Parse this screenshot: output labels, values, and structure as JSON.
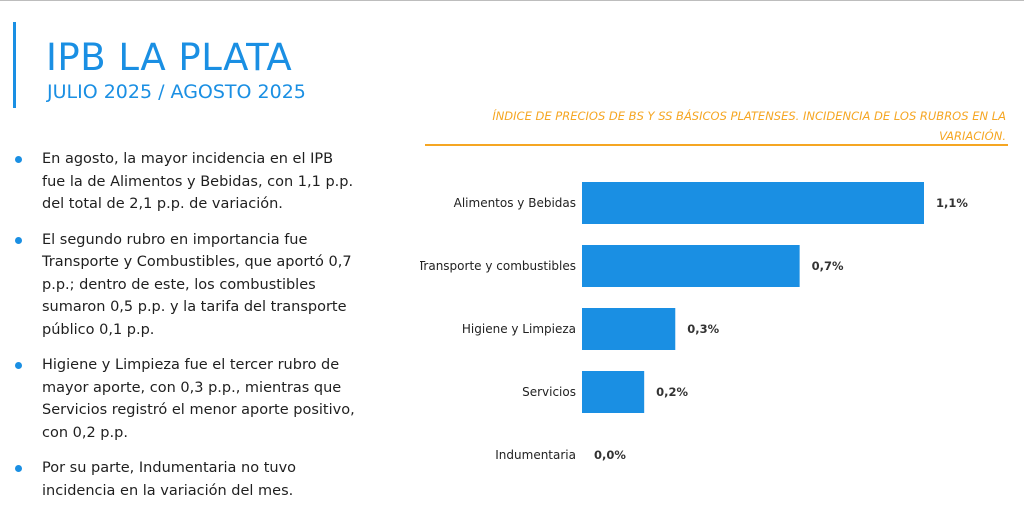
{
  "header": {
    "title": "IPB LA PLATA",
    "subtitle": "JULIO 2025 / AGOSTO 2025"
  },
  "bullets": [
    "En agosto, la mayor incidencia en el IPB fue la de Alimentos y Bebidas, con 1,1 p.p. del total de 2,1 p.p. de variación.",
    "El segundo rubro en importancia fue Transporte y Combustibles, que aportó 0,7 p.p.; dentro de este, los combustibles sumaron 0,5 p.p. y la tarifa del transporte público 0,1 p.p.",
    "Higiene y Limpieza fue el tercer rubro de mayor aporte, con 0,3 p.p., mientras que Servicios registró el menor aporte positivo, con 0,2 p.p.",
    "Por su parte, Indumentaria no tuvo incidencia en la variación del mes."
  ],
  "colors": {
    "accent": "#1a8fe3",
    "chart_title": "#f5a623",
    "bar": "#1a8fe3"
  },
  "chart_data": {
    "type": "bar",
    "orientation": "horizontal",
    "title": "ÍNDICE DE PRECIOS DE BS Y SS BÁSICOS PLATENSES. INCIDENCIA DE LOS RUBROS EN LA VARIACIÓN.",
    "categories": [
      "Alimentos y Bebidas",
      "Transporte y combustibles",
      "Higiene y Limpieza",
      "Servicios",
      "Indumentaria"
    ],
    "values": [
      1.1,
      0.7,
      0.3,
      0.2,
      0.0
    ],
    "value_labels": [
      "1,1%",
      "0,7%",
      "0,3%",
      "0,2%",
      "0,0%"
    ],
    "xlim": [
      0,
      1.1
    ],
    "grid": false,
    "legend": "none"
  }
}
